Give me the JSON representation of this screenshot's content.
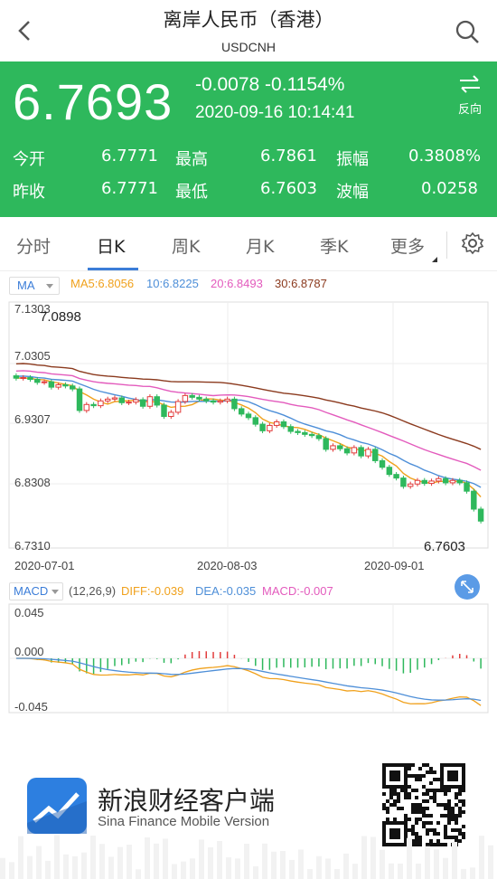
{
  "header": {
    "title": "离岸人民币（香港）",
    "subtitle": "USDCNH"
  },
  "quote": {
    "price": "6.7693",
    "change": "-0.0078 -0.1154%",
    "time": "2020-09-16 10:14:41",
    "reverse_label": "反向",
    "stats": [
      [
        {
          "label": "今开",
          "value": "6.7771"
        },
        {
          "label": "最高",
          "value": "6.7861"
        },
        {
          "label": "振幅",
          "value": "0.3808%"
        }
      ],
      [
        {
          "label": "昨收",
          "value": "6.7771"
        },
        {
          "label": "最低",
          "value": "6.7603"
        },
        {
          "label": "波幅",
          "value": "0.0258"
        }
      ]
    ]
  },
  "tabs": [
    "分时",
    "日K",
    "周K",
    "月K",
    "季K",
    "更多"
  ],
  "active_tab": "日K",
  "ma_legend": {
    "selector": "MA",
    "ma5": "MA5:6.8056",
    "ma10": "10:6.8225",
    "ma20": "20:6.8493",
    "ma30": "30:6.8787"
  },
  "macd_legend": {
    "selector": "MACD",
    "params": "(12,26,9)",
    "diff": "DIFF:-0.039",
    "dea": "DEA:-0.035",
    "macd": "MACD:-0.007"
  },
  "colors": {
    "up": "#e23c3c",
    "down": "#2eb85c",
    "ma5": "#f0a11c",
    "ma10": "#4e8fd8",
    "ma20": "#e35bbd",
    "ma30": "#8b3a1e",
    "accent": "#3b7dd8"
  },
  "chart_data": {
    "type": "candlestick",
    "price_axis": {
      "ticks": [
        "7.1303",
        "7.0305",
        "6.9307",
        "6.8308",
        "6.7310"
      ],
      "ylim": [
        6.731,
        7.1303
      ]
    },
    "x_labels": [
      "2020-07-01",
      "2020-08-03",
      "2020-09-01"
    ],
    "annotations": {
      "high": "7.0898",
      "low": "6.7603"
    },
    "macd_axis": {
      "ticks": [
        "0.045",
        "0.000",
        "-0.045"
      ],
      "ylim": [
        -0.045,
        0.045
      ]
    },
    "closes": [
      7.009,
      7.01,
      7.007,
      7.002,
      7.003,
      6.994,
      6.998,
      6.996,
      6.991,
      6.955,
      6.965,
      6.963,
      6.971,
      6.974,
      6.976,
      6.968,
      6.969,
      6.973,
      6.962,
      6.978,
      6.964,
      6.945,
      6.952,
      6.97,
      6.98,
      6.977,
      6.974,
      6.971,
      6.969,
      6.971,
      6.974,
      6.958,
      6.949,
      6.943,
      6.932,
      6.921,
      6.93,
      6.936,
      6.928,
      6.92,
      6.918,
      6.915,
      6.913,
      6.908,
      6.89,
      6.896,
      6.891,
      6.884,
      6.893,
      6.879,
      6.89,
      6.871,
      6.86,
      6.848,
      6.842,
      6.828,
      6.832,
      6.838,
      6.833,
      6.837,
      6.841,
      6.834,
      6.838,
      6.834,
      6.82,
      6.79,
      6.77
    ]
  },
  "footer": {
    "brand_cn": "新浪财经客户端",
    "brand_en": "Sina Finance Mobile Version",
    "logo_text": "sina"
  }
}
